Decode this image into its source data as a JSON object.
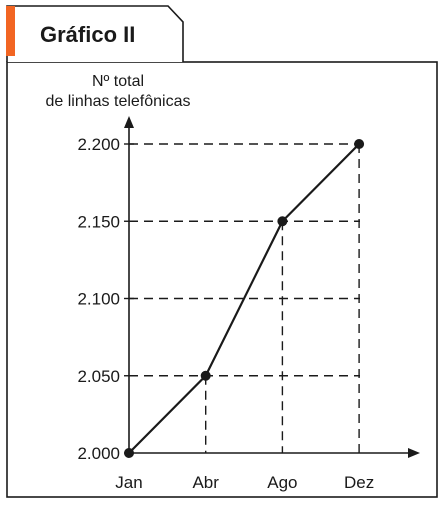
{
  "header": {
    "title": "Gráfico II",
    "accent_color": "#f26522"
  },
  "chart_data": {
    "type": "line",
    "title": "",
    "ylabel_lines": [
      "Nº total",
      "de linhas telefônicas"
    ],
    "xlabel": "",
    "categories": [
      "Jan",
      "Abr",
      "Ago",
      "Dez"
    ],
    "series": [
      {
        "values": [
          2000,
          2050,
          2150,
          2200
        ]
      }
    ],
    "ylim": [
      2000,
      2200
    ],
    "yticks": [
      2000,
      2050,
      2100,
      2150,
      2200
    ],
    "ytick_labels": [
      "2.000",
      "2.050",
      "2.100",
      "2.150",
      "2.200"
    ],
    "grid": "dashed guide lines at each y tick",
    "line_color": "#1a1a1a"
  }
}
